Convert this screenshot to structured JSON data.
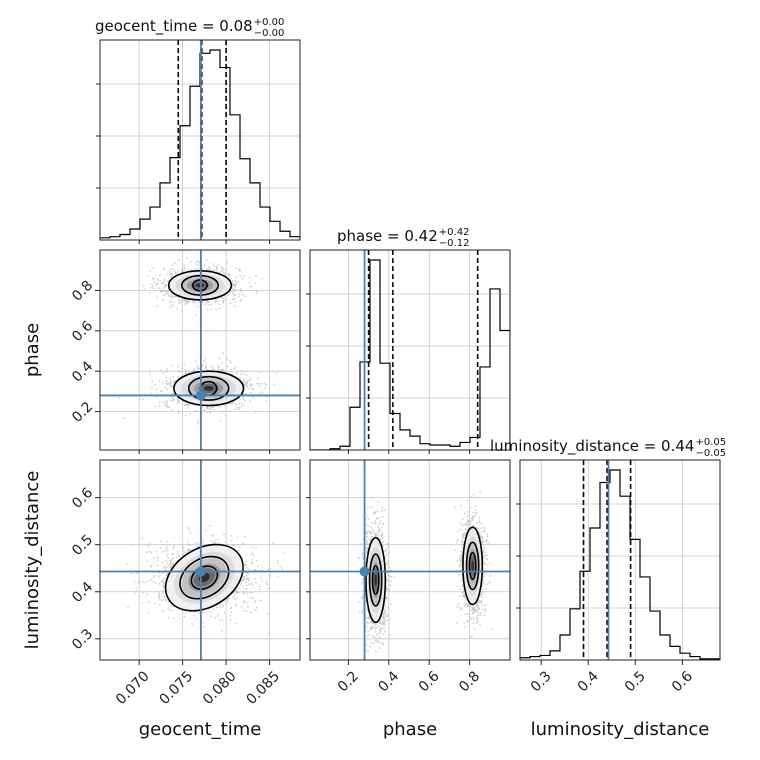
{
  "chart_data": {
    "type": "corner",
    "parameters": [
      "geocent_time",
      "phase",
      "luminosity_distance"
    ],
    "truths": {
      "geocent_time": 0.0771,
      "phase": 0.28,
      "luminosity_distance": 0.443
    },
    "titles": [
      {
        "param": "geocent_time",
        "text": "geocent_time = 0.08",
        "sup": "+0.00",
        "sub": "−0.00"
      },
      {
        "param": "phase",
        "text": "phase = 0.42",
        "sup": "+0.42",
        "sub": "−0.12"
      },
      {
        "param": "luminosity_distance",
        "text": "luminosity_distance = 0.44",
        "sup": "+0.05",
        "sub": "−0.05"
      }
    ],
    "axes": {
      "geocent_time": {
        "range": [
          0.0655,
          0.0885
        ],
        "ticks": [
          0.07,
          0.075,
          0.08,
          0.085
        ],
        "tick_labels": [
          "0.070",
          "0.075",
          "0.080",
          "0.085"
        ]
      },
      "phase": {
        "range": [
          0.01,
          1.0
        ],
        "ticks": [
          0.2,
          0.4,
          0.6,
          0.8
        ],
        "tick_labels": [
          "0.2",
          "0.4",
          "0.6",
          "0.8"
        ]
      },
      "luminosity_distance": {
        "range": [
          0.255,
          0.68
        ],
        "ticks": [
          0.3,
          0.4,
          0.5,
          0.6
        ],
        "tick_labels": [
          "0.3",
          "0.4",
          "0.5",
          "0.6"
        ]
      }
    },
    "quantiles": {
      "geocent_time": [
        0.0745,
        0.0772,
        0.08
      ],
      "phase": [
        0.3,
        0.42,
        0.84
      ],
      "luminosity_distance": [
        0.39,
        0.44,
        0.49
      ]
    },
    "histograms": {
      "geocent_time": {
        "edges_start": 0.0655,
        "bin_width": 0.00115,
        "counts": [
          2,
          3,
          5,
          10,
          19,
          30,
          52,
          75,
          104,
          140,
          170,
          173,
          157,
          114,
          74,
          52,
          30,
          17,
          8,
          3
        ]
      },
      "phase": {
        "edges_start": 0.01,
        "bin_width": 0.0495,
        "counts": [
          0,
          0,
          1,
          3,
          34,
          70,
          151,
          69,
          29,
          16,
          11,
          5,
          4,
          4,
          3,
          6,
          10,
          66,
          128,
          95
        ]
      },
      "luminosity_distance": {
        "edges_start": 0.255,
        "bin_width": 0.02125,
        "counts": [
          2,
          3,
          4,
          8,
          22,
          45,
          78,
          116,
          156,
          167,
          144,
          106,
          73,
          43,
          22,
          12,
          6,
          3,
          1,
          1
        ]
      }
    },
    "modes_2d": {
      "phase_vs_geocent_time": [
        {
          "cx": 0.077,
          "cy": 0.825,
          "w": 0.78,
          "levels": [
            [
              0.00082,
              0.027
            ],
            [
              0.0021,
              0.048
            ],
            [
              0.0036,
              0.072
            ]
          ]
        },
        {
          "cx": 0.078,
          "cy": 0.315,
          "w": 0.86,
          "levels": [
            [
              0.00092,
              0.034
            ],
            [
              0.0023,
              0.058
            ],
            [
              0.004,
              0.085
            ]
          ]
        }
      ],
      "luminosity_distance_vs_geocent_time": [
        {
          "cx": 0.0775,
          "cy": 0.43,
          "angle": -0.55,
          "levels": [
            [
              0.0016,
              0.022
            ],
            [
              0.003,
              0.04
            ],
            [
              0.0048,
              0.062
            ]
          ]
        }
      ],
      "luminosity_distance_vs_phase": [
        {
          "cx": 0.335,
          "cy": 0.425,
          "w": 0.6,
          "levels": [
            [
              0.016,
              0.03
            ],
            [
              0.03,
              0.055
            ],
            [
              0.048,
              0.09
            ]
          ]
        },
        {
          "cx": 0.815,
          "cy": 0.455,
          "w": 0.4,
          "levels": [
            [
              0.016,
              0.028
            ],
            [
              0.03,
              0.05
            ],
            [
              0.048,
              0.082
            ]
          ]
        }
      ]
    },
    "colors": {
      "truth": "#4682b4",
      "hist": "#000000",
      "quantile": "#000000",
      "scatter": "#bdbdbd",
      "grid": "#c8c8c8"
    },
    "grid": true
  }
}
